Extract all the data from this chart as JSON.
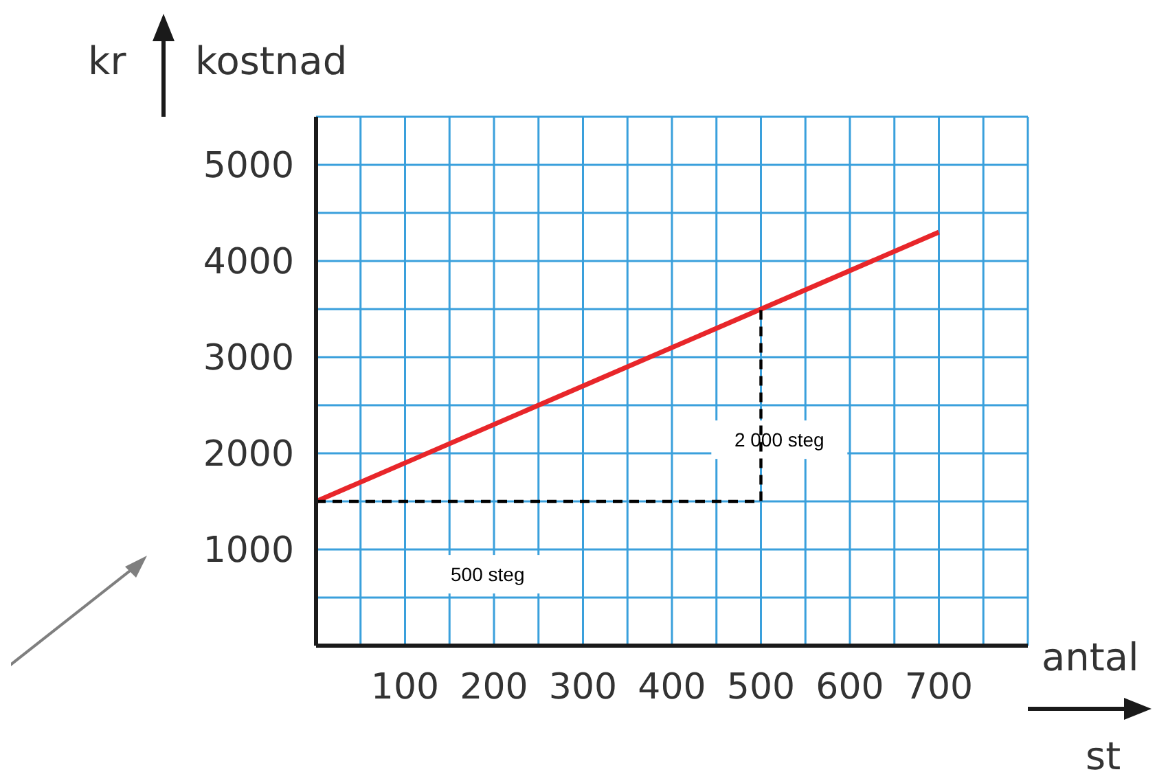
{
  "chart_data": {
    "type": "line",
    "xlabel": "antal",
    "ylabel": "kostnad",
    "xlim": [
      0,
      800
    ],
    "ylim": [
      0,
      5500
    ],
    "xticks": [
      {
        "value": 50,
        "label": null
      },
      100,
      {
        "value": 150,
        "label": null
      },
      200,
      {
        "value": 250,
        "label": null
      },
      300,
      {
        "value": 350,
        "label": null
      },
      400,
      {
        "value": 450,
        "label": null
      },
      500,
      {
        "value": 550,
        "label": null
      },
      600,
      {
        "value": 650,
        "label": null
      },
      700,
      {
        "value": 750,
        "label": null
      },
      {
        "value": 800,
        "label": null
      }
    ],
    "yticks": [
      {
        "value": 500,
        "label": null
      },
      1000,
      {
        "value": 1500,
        "label": null
      },
      2000,
      {
        "value": 2500,
        "label": null
      },
      3000,
      {
        "value": 3500,
        "label": null
      },
      4000,
      {
        "value": 4500,
        "label": null
      },
      5000,
      {
        "value": 5500,
        "label": null
      }
    ],
    "grid": true,
    "marker": "none",
    "series": [
      {
        "type": "line",
        "color": "#e8262a",
        "x": [
          0,
          700
        ],
        "values": [
          1500,
          4300
        ],
        "line_style": "solid"
      },
      {
        "type": "line",
        "color": "#000000",
        "x": [
          0,
          500,
          500
        ],
        "values": [
          1500,
          1500,
          3500
        ],
        "line_style": "dashed"
      }
    ],
    "annotations": [
      "kr",
      "st",
      "500 steg",
      "2 000 steg"
    ]
  }
}
